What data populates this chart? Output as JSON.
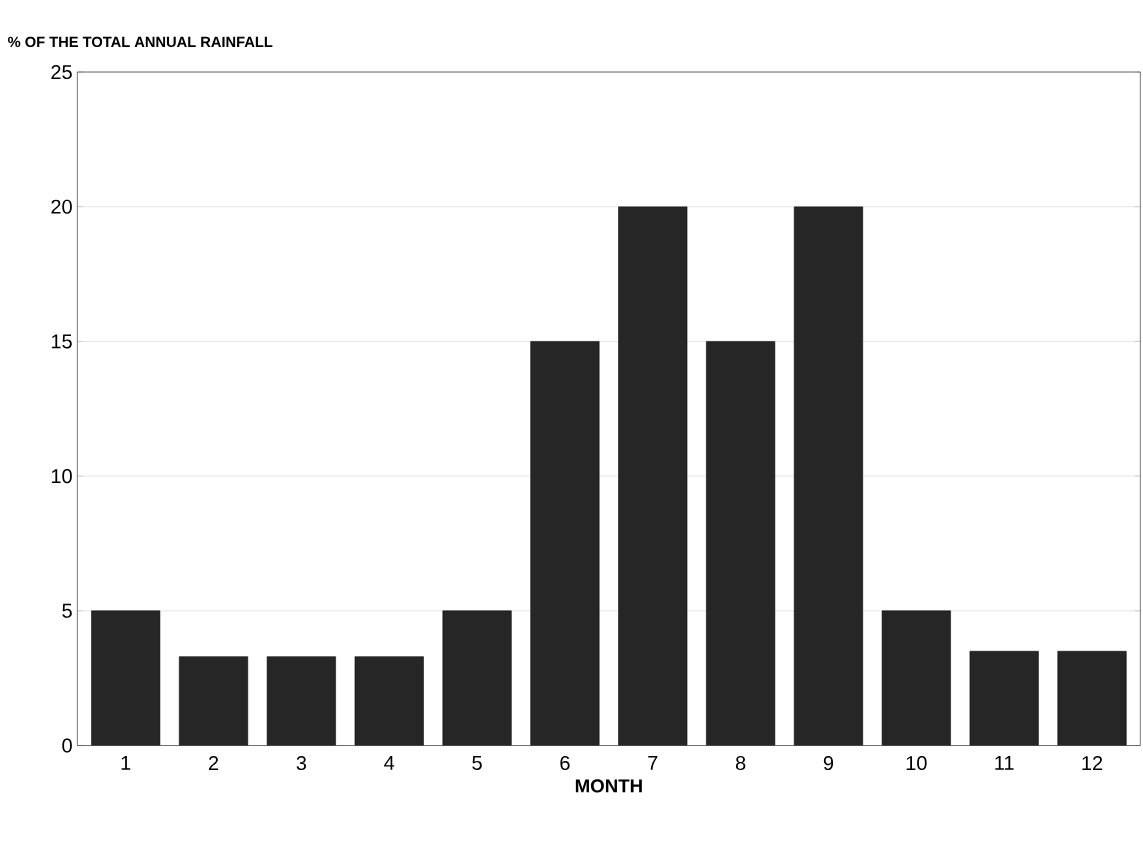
{
  "chart_data": {
    "type": "bar",
    "ylabel": "% OF THE TOTAL ANNUAL RAINFALL",
    "xlabel": "MONTH",
    "categories": [
      "1",
      "2",
      "3",
      "4",
      "5",
      "6",
      "7",
      "8",
      "9",
      "10",
      "11",
      "12"
    ],
    "values": [
      5,
      3.3,
      3.3,
      3.3,
      5,
      15,
      20,
      15,
      20,
      5,
      3.5,
      3.5
    ],
    "color": "#262626",
    "ylim": [
      0,
      25
    ],
    "yticks": [
      0,
      5,
      10,
      15,
      20,
      25
    ],
    "grid": "y"
  }
}
